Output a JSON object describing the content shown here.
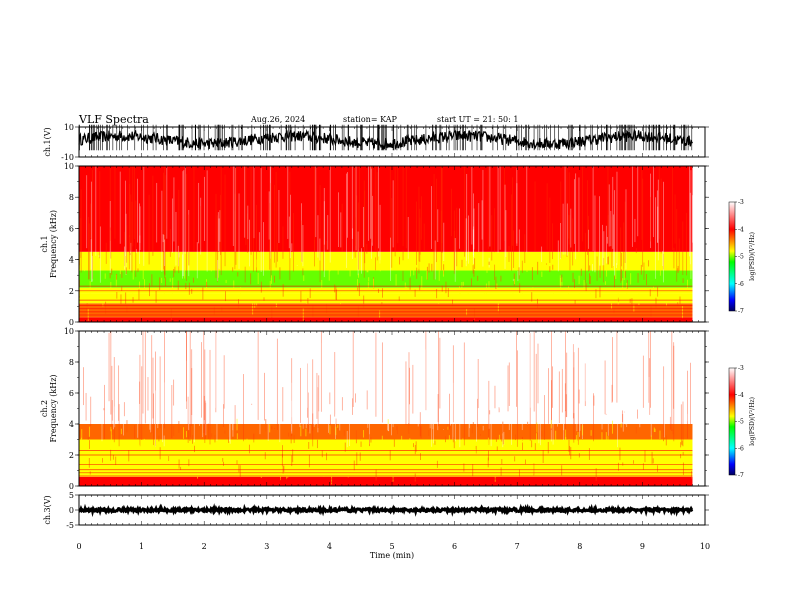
{
  "header": {
    "title": "VLF Spectra",
    "date": "Aug.26, 2024",
    "station": "station= KAP",
    "start_ut": "start UT =  21: 50: 1"
  },
  "chart_data": [
    {
      "type": "line",
      "name": "ch1-waveform",
      "ylabel": "ch.1(V)",
      "ylim": [
        -10,
        10
      ],
      "y_ticks": [
        "10",
        "-10"
      ],
      "x_range_min": [
        0,
        9.8
      ],
      "waveform_note_values": {
        "mean_approx": 1.5,
        "amplitude_approx": 7
      }
    },
    {
      "type": "heatmap",
      "name": "ch1-spectrogram",
      "ylabel_lines": [
        "ch.1",
        "Frequency (kHz)"
      ],
      "ylim": [
        0,
        10
      ],
      "y_ticks": [
        "0",
        "2",
        "4",
        "6",
        "8",
        "10"
      ],
      "x_range_min": [
        0,
        9.8
      ],
      "colorbar": {
        "label": "log(PSD)(V²/Hz)",
        "range": [
          -7,
          -3
        ],
        "ticks": [
          "-3",
          "-4",
          "-5",
          "-6",
          "-7"
        ]
      },
      "bands": [
        {
          "kHz": [
            0,
            0.3
          ],
          "log_psd": -3.3
        },
        {
          "kHz": [
            0.3,
            1.2
          ],
          "log_psd": -3.8
        },
        {
          "kHz": [
            1.2,
            1.8
          ],
          "log_psd": -4.3
        },
        {
          "kHz": [
            1.8,
            2.2
          ],
          "log_psd": -4.1
        },
        {
          "kHz": [
            2.2,
            3.3
          ],
          "log_psd": -4.8
        },
        {
          "kHz": [
            3.3,
            4.5
          ],
          "log_psd": -4.1
        },
        {
          "kHz": [
            4.5,
            10
          ],
          "log_psd": -3.4
        }
      ]
    },
    {
      "type": "heatmap",
      "name": "ch2-spectrogram",
      "ylabel_lines": [
        "ch.2",
        "Frequency (kHz)"
      ],
      "ylim": [
        0,
        10
      ],
      "y_ticks": [
        "0",
        "2",
        "4",
        "6",
        "8",
        "10"
      ],
      "x_range_min": [
        0,
        9.8
      ],
      "colorbar": {
        "label": "log(PSD)(V²/Hz)",
        "range": [
          -7,
          -3
        ],
        "ticks": [
          "-3",
          "-4",
          "-5",
          "-6",
          "-7"
        ]
      },
      "bands": [
        {
          "kHz": [
            0,
            0.6
          ],
          "log_psd": -3.4
        },
        {
          "kHz": [
            0.6,
            3.0
          ],
          "log_psd": -4.4
        },
        {
          "kHz": [
            3.0,
            4.0
          ],
          "log_psd": -3.7
        },
        {
          "kHz": [
            4.0,
            10
          ],
          "log_psd": -3.1
        }
      ]
    },
    {
      "type": "line",
      "name": "ch3-waveform",
      "ylabel": "ch.3(V)",
      "ylim": [
        -5,
        5
      ],
      "y_ticks": [
        "5",
        "0",
        "-5"
      ],
      "x_range_min": [
        0,
        9.8
      ],
      "waveform_note_values": {
        "mean_approx": 0,
        "amplitude_approx": 0.5
      }
    }
  ],
  "x_axis": {
    "label": "Time (min)",
    "range": [
      0,
      10
    ],
    "ticks": [
      "0",
      "1",
      "2",
      "3",
      "4",
      "5",
      "6",
      "7",
      "8",
      "9",
      "10"
    ]
  },
  "colors": {
    "red": "#ff0000",
    "yellow": "#ffff00",
    "green": "#33ff00",
    "black": "#000000"
  }
}
